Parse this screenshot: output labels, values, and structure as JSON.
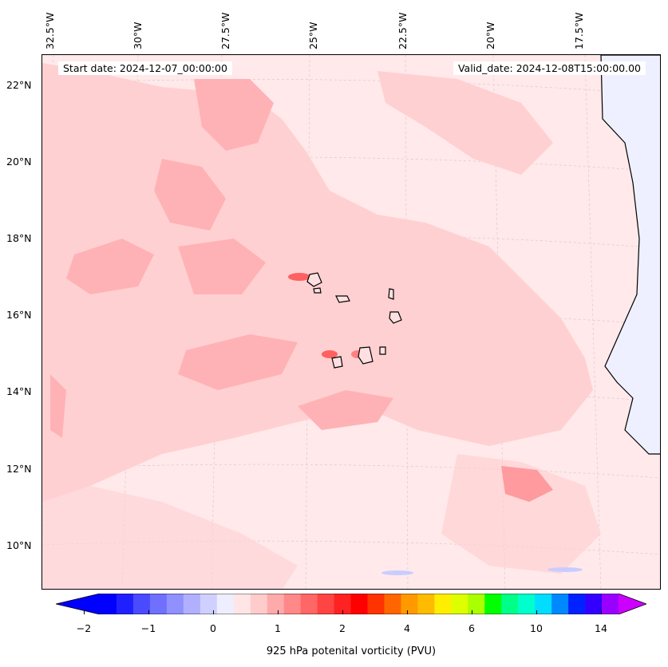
{
  "map": {
    "header": {
      "start_date": "Start date: 2024-12-07_00:00:00",
      "valid_date": "Valid_date: 2024-12-08T15:00:00.00"
    },
    "longitude_labels": [
      "32.5°W",
      "30°W",
      "27.5°W",
      "25°W",
      "22.5°W",
      "20°W",
      "17.5°W"
    ],
    "latitude_labels": [
      "22°N",
      "20°N",
      "18°N",
      "16°N",
      "14°N",
      "12°N",
      "10°N"
    ],
    "field_colors": {
      "background": "#ffe9ea",
      "light_pink": "#ffd0d2",
      "pink": "#ffb2b5",
      "red": "#ff6060",
      "land_blue": "#eef0ff",
      "blue_patch": "#c9ccff",
      "coast": "#000000"
    }
  },
  "colorbar": {
    "title": "925 hPa potenital vorticity (PVU)",
    "tick_labels": [
      "−2",
      "−1",
      "0",
      "1",
      "2",
      "4",
      "6",
      "10",
      "14"
    ],
    "colors": [
      "#0000ff",
      "#2020ff",
      "#4a4aff",
      "#7070ff",
      "#9090ff",
      "#b0b0ff",
      "#d0d0ff",
      "#eeeeff",
      "#ffe5e5",
      "#ffcccc",
      "#ffaaaa",
      "#ff8888",
      "#ff6666",
      "#ff4444",
      "#ff2222",
      "#ff0000",
      "#ff3300",
      "#ff6600",
      "#ff9900",
      "#ffbb00",
      "#ffee00",
      "#ddff00",
      "#aaff00",
      "#00ff00",
      "#00ff88",
      "#00ffcc",
      "#00ddff",
      "#0088ff",
      "#0022ff",
      "#3300ff",
      "#9900ff"
    ],
    "extend_left_color": "#0000ff",
    "extend_right_color": "#cc00ff"
  }
}
